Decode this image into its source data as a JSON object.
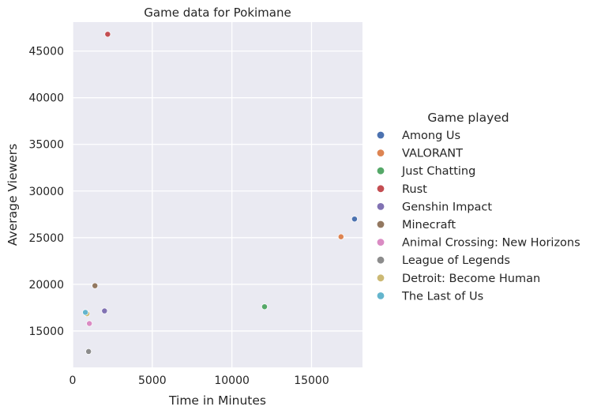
{
  "chart_data": {
    "type": "scatter",
    "title": "Game data for Pokimane",
    "xlabel": "Time in Minutes",
    "ylabel": "Average Viewers",
    "xlim": [
      0,
      18200
    ],
    "ylim": [
      11100,
      48100
    ],
    "xticks": [
      0,
      5000,
      10000,
      15000
    ],
    "yticks": [
      15000,
      20000,
      25000,
      30000,
      35000,
      40000,
      45000
    ],
    "grid": true,
    "background": "#eaeaf2",
    "legend": {
      "title": "Game played",
      "placement": "right"
    },
    "series": [
      {
        "name": "Among Us",
        "color": "#4c72b0",
        "points": [
          {
            "x": 17700,
            "y": 27000
          }
        ]
      },
      {
        "name": "VALORANT",
        "color": "#dd8452",
        "points": [
          {
            "x": 16850,
            "y": 25100
          }
        ]
      },
      {
        "name": "Just Chatting",
        "color": "#55a868",
        "points": [
          {
            "x": 12050,
            "y": 17600
          }
        ]
      },
      {
        "name": "Rust",
        "color": "#c44e52",
        "points": [
          {
            "x": 2200,
            "y": 46800
          }
        ]
      },
      {
        "name": "Genshin Impact",
        "color": "#8172b3",
        "points": [
          {
            "x": 2000,
            "y": 17150
          }
        ]
      },
      {
        "name": "Minecraft",
        "color": "#937860",
        "points": [
          {
            "x": 1400,
            "y": 19850
          }
        ]
      },
      {
        "name": "Animal Crossing: New Horizons",
        "color": "#da8bc3",
        "points": [
          {
            "x": 1050,
            "y": 15800
          }
        ]
      },
      {
        "name": "League of Legends",
        "color": "#8c8c8c",
        "points": [
          {
            "x": 1000,
            "y": 12800
          }
        ]
      },
      {
        "name": "Detroit: Become Human",
        "color": "#ccb974",
        "points": [
          {
            "x": 900,
            "y": 16850
          }
        ]
      },
      {
        "name": "The Last of Us",
        "color": "#64b5cd",
        "points": [
          {
            "x": 800,
            "y": 17000
          }
        ]
      }
    ]
  }
}
